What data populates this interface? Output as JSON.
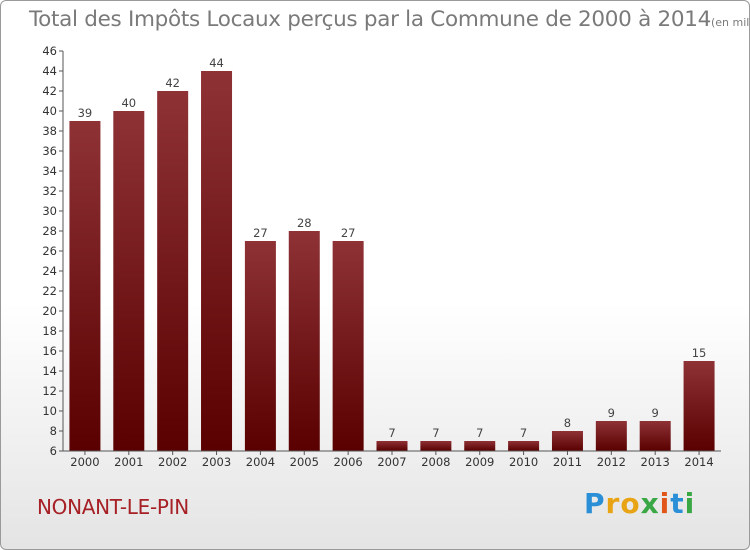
{
  "header": {
    "title": "Total des Impôts Locaux perçus par la Commune de 2000 à 2014",
    "unit": "(en milliers d'€)"
  },
  "commune": "NONANT-LE-PIN",
  "logo": {
    "text": "Proxiti"
  },
  "colors": {
    "bar_top": "#8e3236",
    "bar_bottom": "#5a0000",
    "title": "#7a7a7a",
    "commune": "#a62026"
  },
  "chart_data": {
    "type": "bar",
    "title": "Total des Impôts Locaux perçus par la Commune de 2000 à 2014",
    "subtitle": "(en milliers d'€)",
    "categories": [
      "2000",
      "2001",
      "2002",
      "2003",
      "2004",
      "2005",
      "2006",
      "2007",
      "2008",
      "2009",
      "2010",
      "2011",
      "2012",
      "2013",
      "2014"
    ],
    "values": [
      39,
      40,
      42,
      44,
      27,
      28,
      27,
      7,
      7,
      7,
      7,
      8,
      9,
      9,
      15
    ],
    "ylim": [
      6,
      46
    ],
    "yticks": [
      6,
      8,
      10,
      12,
      14,
      16,
      18,
      20,
      22,
      24,
      26,
      28,
      30,
      32,
      34,
      36,
      38,
      40,
      42,
      44,
      46
    ],
    "grid": false,
    "legend": "none"
  }
}
